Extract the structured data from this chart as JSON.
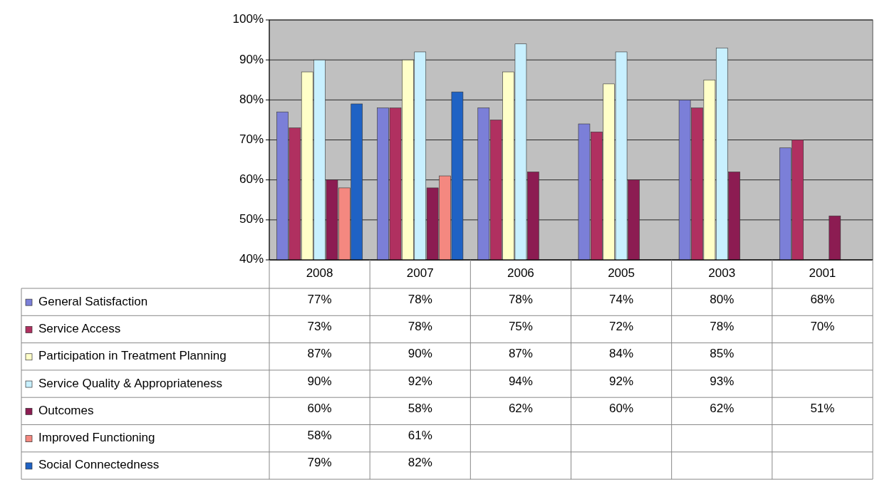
{
  "chart_data": {
    "type": "bar",
    "categories": [
      "2008",
      "2007",
      "2006",
      "2005",
      "2003",
      "2001"
    ],
    "ylim": [
      40,
      100
    ],
    "yticks": [
      {
        "value": 40,
        "label": "40%"
      },
      {
        "value": 50,
        "label": "50%"
      },
      {
        "value": 60,
        "label": "60%"
      },
      {
        "value": 70,
        "label": "70%"
      },
      {
        "value": 80,
        "label": "80%"
      },
      {
        "value": 90,
        "label": "90%"
      },
      {
        "value": 100,
        "label": "100%"
      }
    ],
    "grid": "y",
    "legend": "bottom",
    "series": [
      {
        "name": "General Satisfaction",
        "color": "#7b7fd8",
        "values": [
          77,
          78,
          78,
          74,
          80,
          68
        ],
        "value_labels": [
          "77%",
          "78%",
          "78%",
          "74%",
          "80%",
          "68%"
        ]
      },
      {
        "name": "Service Access",
        "color": "#b03060",
        "values": [
          73,
          78,
          75,
          72,
          78,
          70
        ],
        "value_labels": [
          "73%",
          "78%",
          "75%",
          "72%",
          "78%",
          "70%"
        ]
      },
      {
        "name": "Participation in Treatment Planning",
        "color": "#ffffc8",
        "values": [
          87,
          90,
          87,
          84,
          85,
          null
        ],
        "value_labels": [
          "87%",
          "90%",
          "87%",
          "84%",
          "85%",
          null
        ]
      },
      {
        "name": "Service Quality & Appropriateness",
        "color": "#c8f0ff",
        "values": [
          90,
          92,
          94,
          92,
          93,
          null
        ],
        "value_labels": [
          "90%",
          "92%",
          "94%",
          "92%",
          "93%",
          null
        ]
      },
      {
        "name": "Outcomes",
        "color": "#8c1c52",
        "values": [
          60,
          58,
          62,
          60,
          62,
          51
        ],
        "value_labels": [
          "60%",
          "58%",
          "62%",
          "60%",
          "62%",
          "51%"
        ]
      },
      {
        "name": "Improved Functioning",
        "color": "#f48880",
        "values": [
          58,
          61,
          null,
          null,
          null,
          null
        ],
        "value_labels": [
          "58%",
          "61%",
          null,
          null,
          null,
          null
        ]
      },
      {
        "name": "Social Connectedness",
        "color": "#1f62c4",
        "values": [
          79,
          82,
          null,
          null,
          null,
          null
        ],
        "value_labels": [
          "79%",
          "82%",
          null,
          null,
          null,
          null
        ]
      }
    ]
  }
}
